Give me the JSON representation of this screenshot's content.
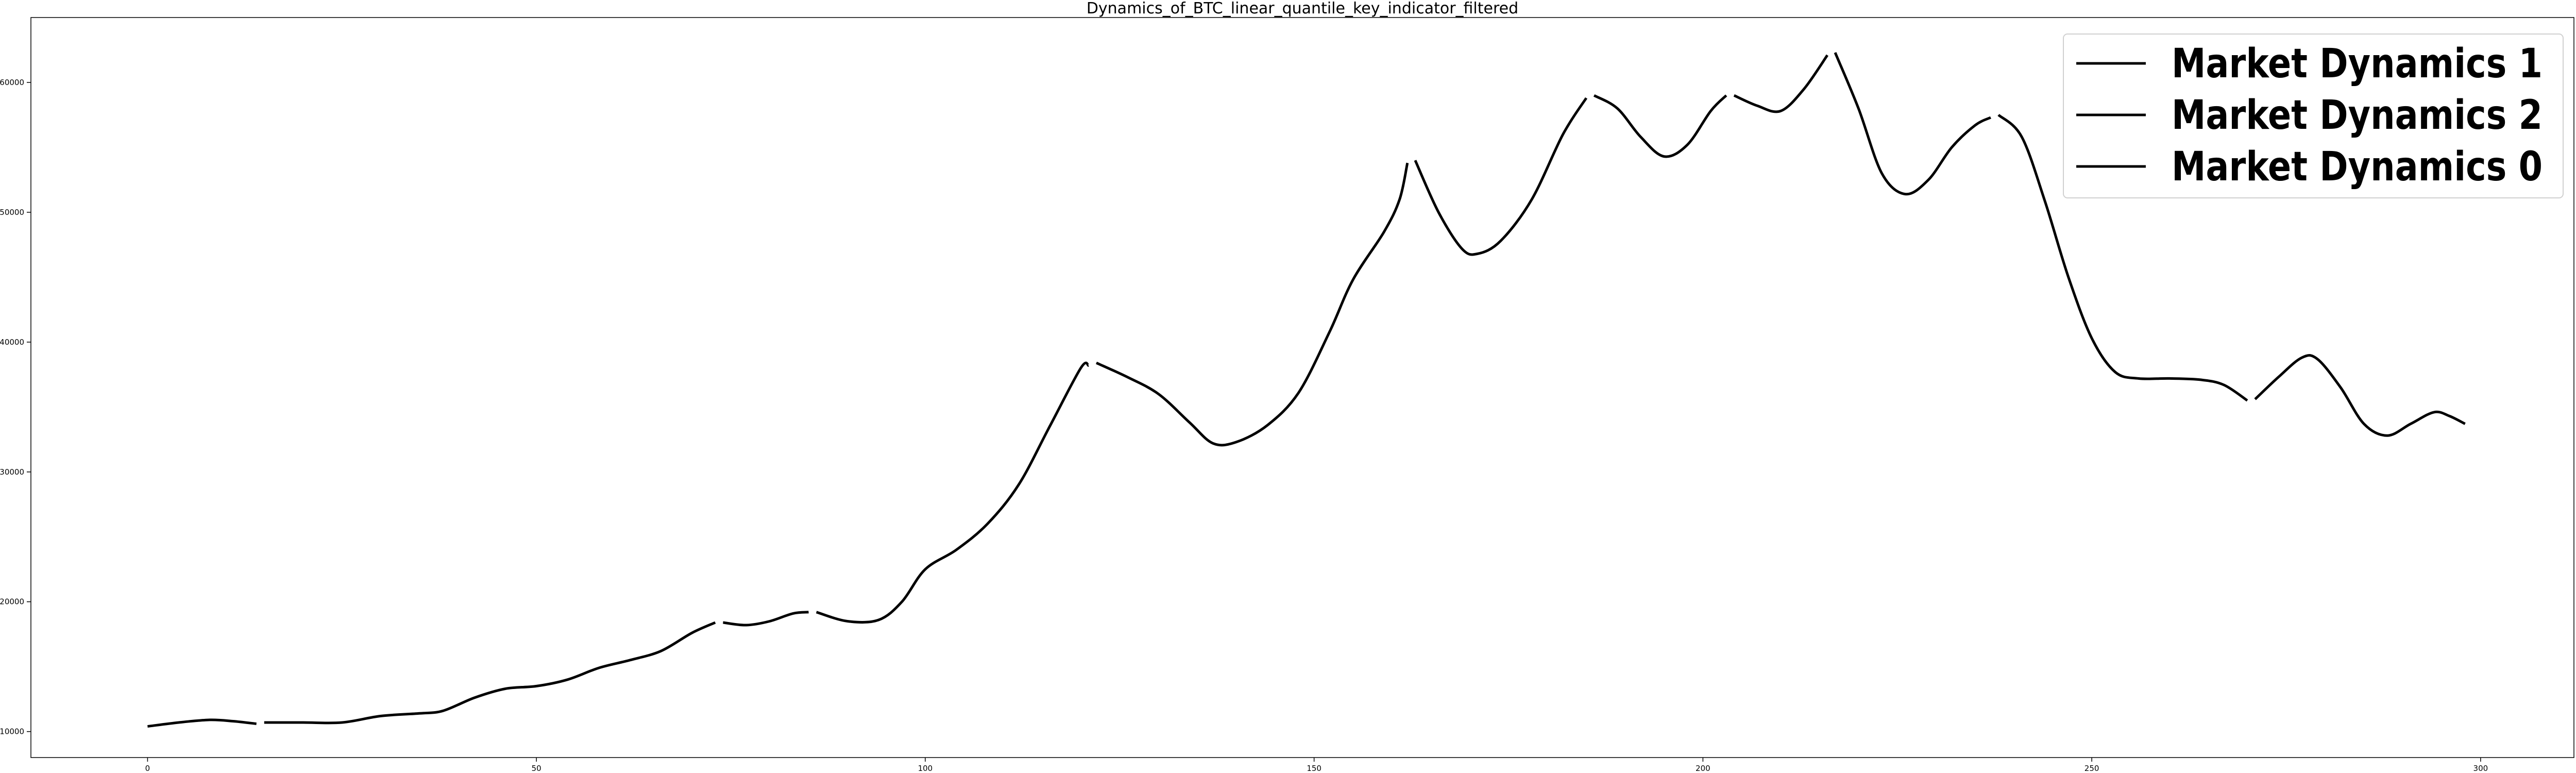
{
  "chart_data": {
    "type": "line",
    "title": "Dynamics_of_BTC_linear_quantile_key_indicator_filtered",
    "xlabel": "",
    "ylabel": "",
    "xlim": [
      -15,
      312
    ],
    "ylim": [
      8000,
      65000
    ],
    "x_ticks": [
      0,
      50,
      100,
      150,
      200,
      250,
      300
    ],
    "y_ticks": [
      10000,
      20000,
      30000,
      40000,
      50000,
      60000
    ],
    "grid": false,
    "legend_position": "top-right",
    "line_color": "#000000",
    "series": [
      {
        "name": "Market Dynamics 1",
        "segments": [
          [
            [
              0,
              10400
            ],
            [
              4,
              10700
            ],
            [
              8,
              10900
            ],
            [
              11,
              10800
            ],
            [
              14,
              10600
            ]
          ],
          [
            [
              86,
              19200
            ],
            [
              90,
              18500
            ],
            [
              94,
              18600
            ],
            [
              97,
              20000
            ],
            [
              100,
              22500
            ],
            [
              104,
              24000
            ],
            [
              108,
              26000
            ],
            [
              112,
              29000
            ],
            [
              116,
              33500
            ],
            [
              120,
              38000
            ],
            [
              121,
              38200
            ]
          ],
          [
            [
              163,
              54000
            ],
            [
              166,
              50000
            ],
            [
              169,
              47200
            ],
            [
              171,
              46800
            ],
            [
              174,
              47800
            ],
            [
              178,
              51000
            ],
            [
              182,
              56000
            ],
            [
              185,
              58800
            ]
          ],
          [
            [
              204,
              59000
            ],
            [
              207,
              58200
            ],
            [
              210,
              57800
            ],
            [
              213,
              59500
            ],
            [
              216,
              62100
            ]
          ],
          [
            [
              271,
              35600
            ],
            [
              274,
              37300
            ],
            [
              277,
              38800
            ],
            [
              279,
              38700
            ],
            [
              282,
              36500
            ],
            [
              285,
              33700
            ],
            [
              288,
              32800
            ],
            [
              291,
              33700
            ],
            [
              294,
              34600
            ],
            [
              296,
              34300
            ],
            [
              298,
              33700
            ]
          ]
        ]
      },
      {
        "name": "Market Dynamics 2",
        "segments": [
          [
            [
              15,
              10700
            ],
            [
              20,
              10700
            ],
            [
              25,
              10700
            ],
            [
              30,
              11200
            ],
            [
              35,
              11400
            ],
            [
              38,
              11600
            ],
            [
              42,
              12600
            ],
            [
              46,
              13300
            ],
            [
              50,
              13500
            ],
            [
              54,
              14000
            ],
            [
              58,
              14900
            ],
            [
              62,
              15500
            ],
            [
              66,
              16200
            ],
            [
              70,
              17600
            ],
            [
              73,
              18400
            ]
          ],
          [
            [
              122,
              38400
            ],
            [
              126,
              37300
            ],
            [
              130,
              36000
            ],
            [
              134,
              33800
            ],
            [
              137,
              32200
            ],
            [
              140,
              32300
            ],
            [
              144,
              33600
            ],
            [
              148,
              36100
            ],
            [
              152,
              40800
            ],
            [
              155,
              44800
            ],
            [
              159,
              48500
            ],
            [
              161,
              51000
            ],
            [
              162,
              53800
            ]
          ],
          [
            [
              217,
              62300
            ],
            [
              220,
              58000
            ],
            [
              223,
              53000
            ],
            [
              226,
              51400
            ],
            [
              229,
              52500
            ],
            [
              232,
              55000
            ],
            [
              235,
              56700
            ],
            [
              237,
              57300
            ]
          ]
        ]
      },
      {
        "name": "Market Dynamics 0",
        "segments": [
          [
            [
              74,
              18400
            ],
            [
              77,
              18200
            ],
            [
              80,
              18500
            ],
            [
              83,
              19100
            ],
            [
              85,
              19200
            ]
          ],
          [
            [
              186,
              59000
            ],
            [
              189,
              58000
            ],
            [
              192,
              55800
            ],
            [
              195,
              54300
            ],
            [
              198,
              55200
            ],
            [
              201,
              57800
            ],
            [
              203,
              59000
            ]
          ],
          [
            [
              238,
              57500
            ],
            [
              241,
              55800
            ],
            [
              244,
              50800
            ],
            [
              247,
              45000
            ],
            [
              250,
              40300
            ],
            [
              253,
              37700
            ],
            [
              256,
              37200
            ],
            [
              260,
              37200
            ],
            [
              264,
              37100
            ],
            [
              267,
              36700
            ],
            [
              270,
              35500
            ]
          ]
        ]
      }
    ]
  }
}
